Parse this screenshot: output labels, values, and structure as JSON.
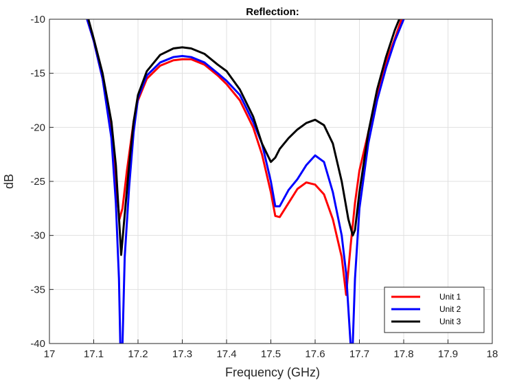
{
  "chart_data": {
    "type": "line",
    "title": "Reflection:",
    "xlabel": "Frequency (GHz)",
    "ylabel": "dB",
    "xlim": [
      17,
      18
    ],
    "ylim": [
      -40,
      -10
    ],
    "xticks": [
      17,
      17.1,
      17.2,
      17.3,
      17.4,
      17.5,
      17.6,
      17.7,
      17.8,
      17.9,
      18
    ],
    "xtick_labels": [
      "17",
      "17.1",
      "17.2",
      "17.3",
      "17.4",
      "17.5",
      "17.6",
      "17.7",
      "17.8",
      "17.9",
      "18"
    ],
    "yticks": [
      -40,
      -35,
      -30,
      -25,
      -20,
      -15,
      -10
    ],
    "ytick_labels": [
      "-40",
      "-35",
      "-30",
      "-25",
      "-20",
      "-15",
      "-10"
    ],
    "grid": true,
    "legend_position": "bottom-right",
    "series": [
      {
        "name": "Unit 1",
        "color": "#ff0000",
        "points": [
          [
            17.085,
            -10
          ],
          [
            17.1,
            -12.0
          ],
          [
            17.12,
            -15.5
          ],
          [
            17.14,
            -20.5
          ],
          [
            17.15,
            -25.0
          ],
          [
            17.158,
            -28.5
          ],
          [
            17.165,
            -27.5
          ],
          [
            17.175,
            -24.0
          ],
          [
            17.19,
            -19.5
          ],
          [
            17.2,
            -17.5
          ],
          [
            17.22,
            -15.5
          ],
          [
            17.25,
            -14.3
          ],
          [
            17.28,
            -13.8
          ],
          [
            17.3,
            -13.7
          ],
          [
            17.32,
            -13.7
          ],
          [
            17.35,
            -14.2
          ],
          [
            17.38,
            -15.2
          ],
          [
            17.4,
            -16.0
          ],
          [
            17.43,
            -17.5
          ],
          [
            17.46,
            -20.0
          ],
          [
            17.48,
            -22.5
          ],
          [
            17.5,
            -26.0
          ],
          [
            17.51,
            -28.2
          ],
          [
            17.52,
            -28.3
          ],
          [
            17.54,
            -27.0
          ],
          [
            17.56,
            -25.7
          ],
          [
            17.58,
            -25.1
          ],
          [
            17.6,
            -25.3
          ],
          [
            17.62,
            -26.2
          ],
          [
            17.64,
            -28.5
          ],
          [
            17.66,
            -32.0
          ],
          [
            17.67,
            -35.5
          ],
          [
            17.68,
            -31.0
          ],
          [
            17.69,
            -27.0
          ],
          [
            17.7,
            -24.0
          ],
          [
            17.72,
            -20.5
          ],
          [
            17.74,
            -17.0
          ],
          [
            17.76,
            -14.0
          ],
          [
            17.78,
            -11.8
          ],
          [
            17.795,
            -10
          ]
        ]
      },
      {
        "name": "Unit 2",
        "color": "#0000ff",
        "points": [
          [
            17.085,
            -10
          ],
          [
            17.1,
            -12.0
          ],
          [
            17.12,
            -15.5
          ],
          [
            17.14,
            -21.0
          ],
          [
            17.15,
            -27.0
          ],
          [
            17.157,
            -34.0
          ],
          [
            17.16,
            -40
          ],
          [
            17.165,
            -40
          ],
          [
            17.17,
            -32.0
          ],
          [
            17.18,
            -25.5
          ],
          [
            17.19,
            -20.5
          ],
          [
            17.2,
            -17.3
          ],
          [
            17.22,
            -15.2
          ],
          [
            17.25,
            -14.0
          ],
          [
            17.28,
            -13.5
          ],
          [
            17.3,
            -13.4
          ],
          [
            17.32,
            -13.5
          ],
          [
            17.35,
            -14.0
          ],
          [
            17.38,
            -15.0
          ],
          [
            17.4,
            -15.7
          ],
          [
            17.43,
            -17.0
          ],
          [
            17.46,
            -19.5
          ],
          [
            17.48,
            -21.5
          ],
          [
            17.5,
            -25.0
          ],
          [
            17.51,
            -27.3
          ],
          [
            17.52,
            -27.3
          ],
          [
            17.54,
            -25.8
          ],
          [
            17.56,
            -24.8
          ],
          [
            17.58,
            -23.5
          ],
          [
            17.6,
            -22.6
          ],
          [
            17.62,
            -23.2
          ],
          [
            17.64,
            -26.0
          ],
          [
            17.66,
            -30.0
          ],
          [
            17.67,
            -33.5
          ],
          [
            17.68,
            -40
          ],
          [
            17.685,
            -40
          ],
          [
            17.69,
            -34.0
          ],
          [
            17.7,
            -27.5
          ],
          [
            17.72,
            -21.5
          ],
          [
            17.74,
            -17.5
          ],
          [
            17.76,
            -14.5
          ],
          [
            17.78,
            -12.0
          ],
          [
            17.8,
            -10
          ]
        ]
      },
      {
        "name": "Unit 3",
        "color": "#000000",
        "points": [
          [
            17.088,
            -10
          ],
          [
            17.1,
            -11.8
          ],
          [
            17.12,
            -15.0
          ],
          [
            17.14,
            -19.5
          ],
          [
            17.15,
            -23.5
          ],
          [
            17.158,
            -29.0
          ],
          [
            17.162,
            -31.8
          ],
          [
            17.168,
            -29.0
          ],
          [
            17.18,
            -23.5
          ],
          [
            17.19,
            -19.5
          ],
          [
            17.2,
            -17.0
          ],
          [
            17.22,
            -14.8
          ],
          [
            17.25,
            -13.3
          ],
          [
            17.28,
            -12.7
          ],
          [
            17.3,
            -12.6
          ],
          [
            17.32,
            -12.7
          ],
          [
            17.35,
            -13.2
          ],
          [
            17.38,
            -14.2
          ],
          [
            17.4,
            -14.8
          ],
          [
            17.43,
            -16.5
          ],
          [
            17.46,
            -19.0
          ],
          [
            17.48,
            -21.5
          ],
          [
            17.5,
            -23.2
          ],
          [
            17.51,
            -22.8
          ],
          [
            17.52,
            -22.0
          ],
          [
            17.54,
            -21.0
          ],
          [
            17.56,
            -20.2
          ],
          [
            17.58,
            -19.6
          ],
          [
            17.6,
            -19.3
          ],
          [
            17.62,
            -19.8
          ],
          [
            17.64,
            -21.5
          ],
          [
            17.66,
            -25.0
          ],
          [
            17.675,
            -28.5
          ],
          [
            17.685,
            -30.0
          ],
          [
            17.69,
            -29.5
          ],
          [
            17.7,
            -26.0
          ],
          [
            17.72,
            -20.5
          ],
          [
            17.74,
            -16.5
          ],
          [
            17.76,
            -13.5
          ],
          [
            17.78,
            -11.0
          ],
          [
            17.79,
            -10
          ]
        ]
      }
    ]
  }
}
